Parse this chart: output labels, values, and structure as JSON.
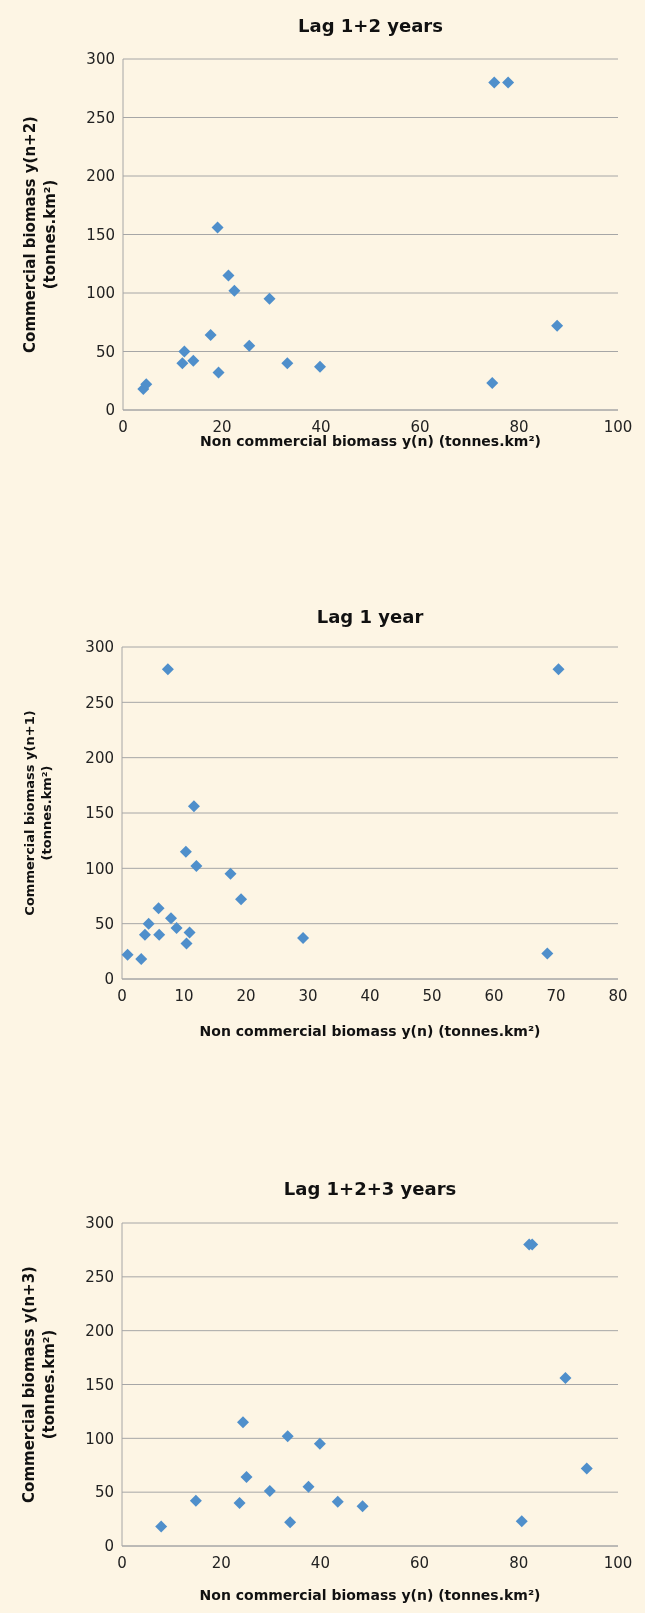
{
  "chart_data": [
    {
      "type": "scatter",
      "title": "Lag 1+2 years",
      "xlabel": "Non commercial biomass y(n) (tonnes.km²)",
      "ylabel": "Commercial biomass y(n+2) (tonnes.km²)",
      "xlim": [
        0,
        100
      ],
      "xticks": [
        0,
        20,
        40,
        60,
        80,
        100
      ],
      "ylim": [
        0,
        300
      ],
      "yticks": [
        0,
        50,
        100,
        150,
        200,
        250,
        300
      ],
      "grid": "y",
      "marker": "diamond",
      "series": [
        {
          "color": "#4f8fcb",
          "x": [
            75,
            77.8,
            19.1,
            21.3,
            22.5,
            29.6,
            87.7,
            17.7,
            25.5,
            12.4,
            12,
            14.2,
            19.3,
            33.2,
            39.8,
            74.6,
            4.1,
            4.7
          ],
          "values": [
            280,
            280,
            156,
            115,
            102,
            95,
            72,
            64,
            55,
            50,
            40,
            42,
            32,
            40,
            37,
            23,
            18,
            22
          ]
        }
      ]
    },
    {
      "type": "scatter",
      "title": "Lag 1 year",
      "xlabel": "Non commercial biomass y(n) (tonnes.km²)",
      "ylabel": "Commercial biomass y(n+1) (tonnes.km²)",
      "xlim": [
        0,
        80
      ],
      "xticks": [
        0,
        10,
        20,
        30,
        40,
        50,
        60,
        70,
        80
      ],
      "ylim": [
        0,
        300
      ],
      "yticks": [
        0,
        50,
        100,
        150,
        200,
        250,
        300
      ],
      "grid": "y",
      "marker": "diamond",
      "series": [
        {
          "color": "#4f8fcb",
          "x": [
            7.4,
            70.4,
            11.6,
            10.3,
            12,
            17.5,
            19.2,
            5.9,
            7.9,
            4.3,
            8.8,
            3.7,
            6,
            10.9,
            10.4,
            29.2,
            68.6,
            0.9,
            3.1
          ],
          "values": [
            280,
            280,
            156,
            115,
            102,
            95,
            72,
            64,
            55,
            50,
            46,
            40,
            40,
            42,
            32,
            37,
            23,
            22,
            18
          ]
        }
      ]
    },
    {
      "type": "scatter",
      "title": "Lag 1+2+3 years",
      "xlabel": "Non commercial biomass y(n) (tonnes.km²)",
      "ylabel": "Commercial biomass y(n+3) (tonnes.km²)",
      "xlim": [
        0,
        100
      ],
      "xticks": [
        0,
        20,
        40,
        60,
        80,
        100
      ],
      "ylim": [
        0,
        300
      ],
      "yticks": [
        0,
        50,
        100,
        150,
        200,
        250,
        300
      ],
      "grid": "y",
      "marker": "diamond",
      "series": [
        {
          "color": "#4f8fcb",
          "x": [
            82.1,
            82.7,
            89.4,
            93.7,
            80.6,
            24.4,
            33.4,
            39.9,
            25.1,
            37.6,
            29.8,
            14.9,
            23.7,
            43.5,
            48.5,
            33.9,
            7.9
          ],
          "values": [
            280,
            280,
            156,
            72,
            23,
            115,
            102,
            95,
            64,
            55,
            51,
            42,
            40,
            41,
            37,
            22,
            18
          ]
        }
      ]
    }
  ]
}
